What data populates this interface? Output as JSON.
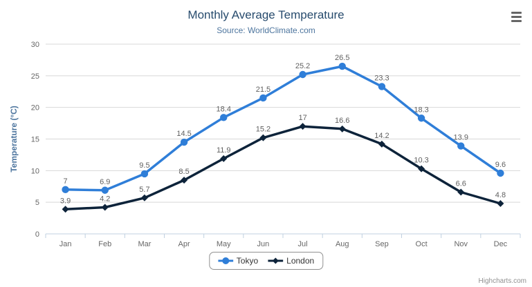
{
  "chart": {
    "title": "Monthly Average Temperature",
    "subtitle": "Source: WorldClimate.com",
    "credits": "Highcharts.com"
  },
  "chart_data": {
    "type": "line",
    "title": "Monthly Average Temperature",
    "subtitle": "Source: WorldClimate.com",
    "categories": [
      "Jan",
      "Feb",
      "Mar",
      "Apr",
      "May",
      "Jun",
      "Jul",
      "Aug",
      "Sep",
      "Oct",
      "Nov",
      "Dec"
    ],
    "series": [
      {
        "name": "Tokyo",
        "color": "#2f7ed8",
        "marker": "circle",
        "values": [
          7,
          6.9,
          9.5,
          14.5,
          18.4,
          21.5,
          25.2,
          26.5,
          23.3,
          18.3,
          13.9,
          9.6
        ]
      },
      {
        "name": "London",
        "color": "#0d233a",
        "marker": "diamond",
        "values": [
          3.9,
          4.2,
          5.7,
          8.5,
          11.9,
          15.2,
          17,
          16.6,
          14.2,
          10.3,
          6.6,
          4.8
        ]
      }
    ],
    "xlabel": "",
    "ylabel": "Temperature (°C)",
    "ylim": [
      0,
      30
    ],
    "ytick_interval": 5,
    "grid": true,
    "data_labels": true,
    "legend_position": "bottom"
  },
  "colors": {
    "title": "#274b6d",
    "subtitle": "#4d759e",
    "axis_title": "#4d759e",
    "axis_label": "#666666",
    "data_label": "#606060",
    "gridline": "#d8d8d8",
    "axis_line": "#c0d0e0",
    "legend_text": "#333333",
    "legend_border": "#909090",
    "credits": "#909090",
    "menu_icon": "#666666"
  }
}
